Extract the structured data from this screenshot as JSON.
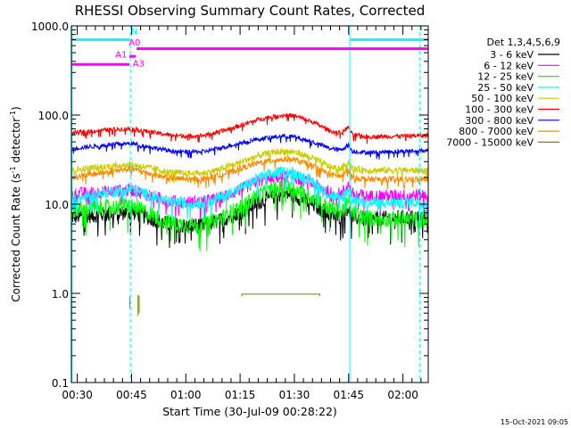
{
  "chart_data": {
    "type": "line",
    "title": "RHESSI Observing Summary Count Rates, Corrected",
    "xlabel": "Start Time (30-Jul-09 00:28:22)",
    "ylabel_main": "Corrected Count Rate (s",
    "ylabel_sup1": "-1",
    "ylabel_mid": " detector",
    "ylabel_sup2": "-1",
    "ylabel_end": ")",
    "footer": "15-Oct-2021 09:05",
    "y_scale": "log",
    "ylim": [
      0.1,
      1000
    ],
    "xlim_minutes": [
      28.37,
      127.0
    ],
    "x_ticks": [
      {
        "label": "00:30",
        "minute": 30
      },
      {
        "label": "00:45",
        "minute": 45
      },
      {
        "label": "01:00",
        "minute": 60
      },
      {
        "label": "01:15",
        "minute": 75
      },
      {
        "label": "01:30",
        "minute": 90
      },
      {
        "label": "01:45",
        "minute": 105
      },
      {
        "label": "02:00",
        "minute": 120
      }
    ],
    "y_ticks": [
      {
        "label": "0.1",
        "value": 0.1
      },
      {
        "label": "1.0",
        "value": 1
      },
      {
        "label": "10.0",
        "value": 10
      },
      {
        "label": "100.0",
        "value": 100
      },
      {
        "label": "1000.0",
        "value": 1000
      }
    ],
    "legend": {
      "header": "Det 1,3,4,5,6,9",
      "placement": "right"
    },
    "series": [
      {
        "name": "3 - 6 keV",
        "color": "#000000",
        "noise": 0.16,
        "points": [
          [
            28.4,
            7.2
          ],
          [
            40,
            7.8
          ],
          [
            45,
            8.2
          ],
          [
            50,
            7.0
          ],
          [
            55,
            6.0
          ],
          [
            60,
            5.7
          ],
          [
            65,
            5.8
          ],
          [
            70,
            6.6
          ],
          [
            75,
            8.2
          ],
          [
            80,
            10.5
          ],
          [
            85,
            12.5
          ],
          [
            88,
            13
          ],
          [
            90,
            12.5
          ],
          [
            95,
            10
          ],
          [
            100,
            7.6
          ],
          [
            103,
            7.2
          ],
          [
            104,
            8.6
          ],
          [
            105,
            9.3
          ],
          [
            106,
            7.2
          ],
          [
            110,
            6.8
          ],
          [
            127,
            7.2
          ]
        ]
      },
      {
        "name": "6 - 12 keV",
        "color": "#ff00ff",
        "noise": 0.13,
        "points": [
          [
            28.4,
            13
          ],
          [
            40,
            14
          ],
          [
            45,
            14.5
          ],
          [
            50,
            12.5
          ],
          [
            55,
            11
          ],
          [
            60,
            10.5
          ],
          [
            65,
            10.7
          ],
          [
            70,
            12
          ],
          [
            75,
            14.5
          ],
          [
            80,
            18
          ],
          [
            85,
            20
          ],
          [
            88,
            20.5
          ],
          [
            90,
            20
          ],
          [
            95,
            17
          ],
          [
            100,
            13.5
          ],
          [
            103,
            13
          ],
          [
            104,
            15
          ],
          [
            105,
            16.5
          ],
          [
            106,
            13
          ],
          [
            110,
            12.3
          ],
          [
            127,
            12.8
          ]
        ]
      },
      {
        "name": "12 - 25 keV",
        "color": "#00ff00",
        "noise": 0.17,
        "points": [
          [
            28.4,
            8.5
          ],
          [
            40,
            9.3
          ],
          [
            45,
            9.6
          ],
          [
            50,
            7.8
          ],
          [
            55,
            6.3
          ],
          [
            60,
            5.8
          ],
          [
            65,
            5.9
          ],
          [
            70,
            7
          ],
          [
            75,
            9.3
          ],
          [
            80,
            12.5
          ],
          [
            85,
            14.8
          ],
          [
            88,
            15.2
          ],
          [
            90,
            14.8
          ],
          [
            95,
            12
          ],
          [
            100,
            8.8
          ],
          [
            103,
            8.2
          ],
          [
            104,
            9.8
          ],
          [
            105,
            10.8
          ],
          [
            106,
            8
          ],
          [
            110,
            7
          ],
          [
            127,
            6.6
          ]
        ]
      },
      {
        "name": "25 - 50 keV",
        "color": "#00ffff",
        "noise": 0.12,
        "points": [
          [
            28.4,
            11.2
          ],
          [
            40,
            14
          ],
          [
            45,
            15
          ],
          [
            50,
            12.5
          ],
          [
            55,
            10.7
          ],
          [
            60,
            10.2
          ],
          [
            65,
            10.4
          ],
          [
            70,
            12
          ],
          [
            75,
            15
          ],
          [
            80,
            19.5
          ],
          [
            85,
            22.5
          ],
          [
            88,
            23
          ],
          [
            90,
            22.5
          ],
          [
            95,
            18
          ],
          [
            100,
            12.5
          ],
          [
            103,
            11.5
          ],
          [
            104,
            13.5
          ],
          [
            105,
            15
          ],
          [
            106,
            11.5
          ],
          [
            110,
            10.3
          ],
          [
            127,
            10.5
          ]
        ]
      },
      {
        "name": "50 - 100 keV",
        "color": "#cccc00",
        "noise": 0.07,
        "points": [
          [
            28.4,
            24
          ],
          [
            40,
            27
          ],
          [
            45,
            28
          ],
          [
            50,
            25.5
          ],
          [
            55,
            23
          ],
          [
            60,
            22
          ],
          [
            65,
            22.3
          ],
          [
            70,
            25
          ],
          [
            75,
            29.5
          ],
          [
            80,
            35
          ],
          [
            85,
            38.5
          ],
          [
            88,
            39
          ],
          [
            90,
            38.5
          ],
          [
            95,
            33
          ],
          [
            100,
            26
          ],
          [
            103,
            25
          ],
          [
            104,
            28
          ],
          [
            105,
            30
          ],
          [
            106,
            25
          ],
          [
            110,
            24
          ],
          [
            127,
            24
          ]
        ]
      },
      {
        "name": "100 - 300 keV",
        "color": "#ff0000",
        "noise": 0.045,
        "points": [
          [
            28.4,
            63
          ],
          [
            40,
            69
          ],
          [
            45,
            70
          ],
          [
            50,
            65
          ],
          [
            55,
            60
          ],
          [
            60,
            58
          ],
          [
            65,
            59
          ],
          [
            70,
            66
          ],
          [
            75,
            76
          ],
          [
            80,
            89
          ],
          [
            85,
            98
          ],
          [
            88,
            100
          ],
          [
            90,
            98
          ],
          [
            95,
            84
          ],
          [
            100,
            66
          ],
          [
            103,
            63
          ],
          [
            104,
            69
          ],
          [
            105,
            72
          ],
          [
            106,
            60
          ],
          [
            110,
            57
          ],
          [
            127,
            59
          ]
        ]
      },
      {
        "name": "300 - 800 keV",
        "color": "#0000ff",
        "noise": 0.045,
        "points": [
          [
            28.4,
            42
          ],
          [
            40,
            47
          ],
          [
            45,
            48
          ],
          [
            50,
            44
          ],
          [
            55,
            40
          ],
          [
            60,
            38.5
          ],
          [
            65,
            39
          ],
          [
            70,
            43
          ],
          [
            75,
            48.5
          ],
          [
            80,
            54
          ],
          [
            85,
            57
          ],
          [
            88,
            58
          ],
          [
            90,
            57
          ],
          [
            95,
            50
          ],
          [
            100,
            42
          ],
          [
            103,
            40.5
          ],
          [
            104,
            44
          ],
          [
            105,
            46
          ],
          [
            106,
            39
          ],
          [
            110,
            38
          ],
          [
            127,
            40
          ]
        ]
      },
      {
        "name": "800 - 7000 keV",
        "color": "#ff8800",
        "noise": 0.06,
        "points": [
          [
            28.4,
            20
          ],
          [
            40,
            23.5
          ],
          [
            45,
            25
          ],
          [
            50,
            22
          ],
          [
            55,
            19.8
          ],
          [
            60,
            19
          ],
          [
            65,
            19.2
          ],
          [
            70,
            21.5
          ],
          [
            75,
            25
          ],
          [
            80,
            29
          ],
          [
            85,
            31.5
          ],
          [
            88,
            32
          ],
          [
            90,
            31.5
          ],
          [
            95,
            27
          ],
          [
            100,
            21.5
          ],
          [
            103,
            20.5
          ],
          [
            104,
            22.5
          ],
          [
            105,
            24
          ],
          [
            106,
            20
          ],
          [
            110,
            19
          ],
          [
            127,
            19
          ]
        ]
      },
      {
        "name": "7000 - 15000 keV",
        "color": "#808000",
        "noise": 0,
        "segments": [
          [
            [
              44.5,
              0.68
            ],
            [
              44.5,
              0.92
            ]
          ],
          [
            [
              46.8,
              0.56
            ],
            [
              46.8,
              0.96
            ]
          ],
          [
            [
              47.1,
              0.6
            ],
            [
              47.1,
              0.94
            ]
          ],
          [
            [
              75.5,
              0.92
            ],
            [
              75.5,
              0.98
            ],
            [
              97,
              0.98
            ],
            [
              97,
              0.93
            ]
          ]
        ]
      }
    ],
    "state_bars": [
      {
        "color": "#00ffff",
        "y": 700,
        "x0": 28.4,
        "x1": 44.5
      },
      {
        "color": "#00ffff",
        "y": 700,
        "x0": 105.5,
        "x1": 127
      },
      {
        "color": "#ff00ff",
        "y": 555,
        "x0": 46.4,
        "x1": 127
      },
      {
        "color": "#ff00ff",
        "y": 370,
        "x0": 28.4,
        "x1": 44.4
      },
      {
        "color": "#ff00ff",
        "y": 455,
        "x0": 44.4,
        "x1": 46.2
      }
    ],
    "state_labels": [
      {
        "text": "N",
        "color": "#00ffff",
        "x": 44.8,
        "y": 800
      },
      {
        "text": "A0",
        "color": "#ff00ff",
        "x": 44.2,
        "y": 600
      },
      {
        "text": "A1",
        "color": "#ff00ff",
        "x": 40.5,
        "y": 440
      },
      {
        "text": "A3",
        "color": "#ff00ff",
        "x": 45.3,
        "y": 350
      }
    ],
    "vlines": [
      {
        "minute": 28.5,
        "color": "#00ffff",
        "style": "solid"
      },
      {
        "minute": 44.7,
        "color": "#00ffff",
        "style": "dashed"
      },
      {
        "minute": 105.3,
        "color": "#00ffff",
        "style": "solid"
      },
      {
        "minute": 124.7,
        "color": "#00ffff",
        "style": "dashed"
      }
    ]
  }
}
